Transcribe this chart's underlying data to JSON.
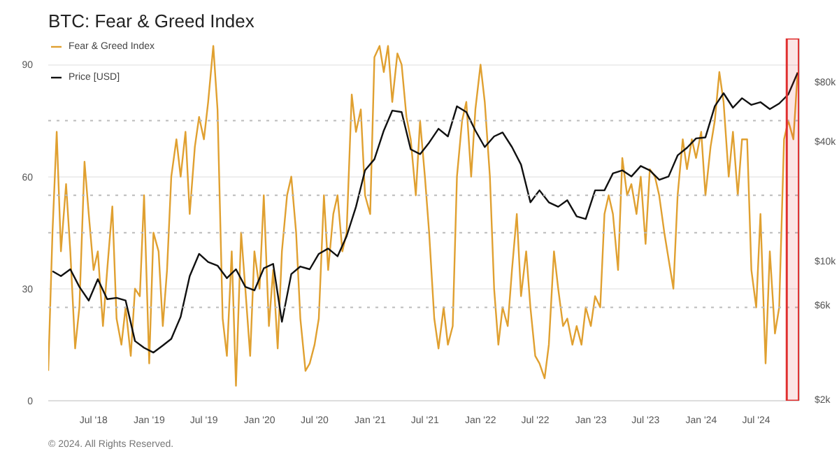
{
  "chart_data": {
    "type": "line",
    "title": "BTC: Fear & Greed Index",
    "legend": "top left",
    "grid": "y",
    "log": "y2",
    "series": [
      {
        "name": "Fear & Greed Index",
        "color": "#e0a030",
        "x": [
          "2018-02-01",
          "2018-02-15",
          "2018-03-01",
          "2018-03-15",
          "2018-04-01",
          "2018-04-15",
          "2018-05-01",
          "2018-05-15",
          "2018-06-01",
          "2018-06-15",
          "2018-07-01",
          "2018-07-15",
          "2018-08-01",
          "2018-08-15",
          "2018-09-01",
          "2018-09-15",
          "2018-10-01",
          "2018-10-15",
          "2018-11-01",
          "2018-11-15",
          "2018-12-01",
          "2018-12-15",
          "2019-01-01",
          "2019-01-15",
          "2019-02-01",
          "2019-02-15",
          "2019-03-01",
          "2019-03-15",
          "2019-04-01",
          "2019-04-15",
          "2019-05-01",
          "2019-05-15",
          "2019-06-01",
          "2019-06-15",
          "2019-07-01",
          "2019-07-15",
          "2019-08-01",
          "2019-08-15",
          "2019-09-01",
          "2019-09-15",
          "2019-10-01",
          "2019-10-15",
          "2019-11-01",
          "2019-11-15",
          "2019-12-01",
          "2019-12-15",
          "2020-01-01",
          "2020-01-15",
          "2020-02-01",
          "2020-02-15",
          "2020-03-01",
          "2020-03-15",
          "2020-04-01",
          "2020-04-15",
          "2020-05-01",
          "2020-05-15",
          "2020-06-01",
          "2020-06-15",
          "2020-07-01",
          "2020-07-15",
          "2020-08-01",
          "2020-08-15",
          "2020-09-01",
          "2020-09-15",
          "2020-10-01",
          "2020-10-15",
          "2020-11-01",
          "2020-11-15",
          "2020-12-01",
          "2020-12-15",
          "2021-01-01",
          "2021-01-15",
          "2021-02-01",
          "2021-02-15",
          "2021-03-01",
          "2021-03-15",
          "2021-04-01",
          "2021-04-15",
          "2021-05-01",
          "2021-05-15",
          "2021-06-01",
          "2021-06-15",
          "2021-07-01",
          "2021-07-15",
          "2021-08-01",
          "2021-08-15",
          "2021-09-01",
          "2021-09-15",
          "2021-10-01",
          "2021-10-15",
          "2021-11-01",
          "2021-11-15",
          "2021-12-01",
          "2021-12-15",
          "2022-01-01",
          "2022-01-15",
          "2022-02-01",
          "2022-02-15",
          "2022-03-01",
          "2022-03-15",
          "2022-04-01",
          "2022-04-15",
          "2022-05-01",
          "2022-05-15",
          "2022-06-01",
          "2022-06-15",
          "2022-07-01",
          "2022-07-15",
          "2022-08-01",
          "2022-08-15",
          "2022-09-01",
          "2022-09-15",
          "2022-10-01",
          "2022-10-15",
          "2022-11-01",
          "2022-11-15",
          "2022-12-01",
          "2022-12-15",
          "2023-01-01",
          "2023-01-15",
          "2023-02-01",
          "2023-02-15",
          "2023-03-01",
          "2023-03-15",
          "2023-04-01",
          "2023-04-15",
          "2023-05-01",
          "2023-05-15",
          "2023-06-01",
          "2023-06-15",
          "2023-07-01",
          "2023-07-15",
          "2023-08-01",
          "2023-08-15",
          "2023-09-01",
          "2023-09-15",
          "2023-10-01",
          "2023-10-15",
          "2023-11-01",
          "2023-11-15",
          "2023-12-01",
          "2023-12-15",
          "2024-01-01",
          "2024-01-15",
          "2024-02-01",
          "2024-02-15",
          "2024-03-01",
          "2024-03-15",
          "2024-04-01",
          "2024-04-15",
          "2024-05-01",
          "2024-05-15",
          "2024-06-01",
          "2024-06-15",
          "2024-07-01",
          "2024-07-15",
          "2024-08-01",
          "2024-08-15",
          "2024-09-01",
          "2024-09-15",
          "2024-10-01",
          "2024-10-15",
          "2024-11-01",
          "2024-11-15"
        ],
        "values": [
          8,
          45,
          72,
          40,
          58,
          40,
          14,
          25,
          64,
          50,
          35,
          40,
          20,
          35,
          52,
          22,
          15,
          25,
          12,
          30,
          28,
          55,
          10,
          45,
          40,
          20,
          35,
          60,
          70,
          60,
          72,
          50,
          68,
          76,
          70,
          80,
          95,
          78,
          22,
          12,
          40,
          4,
          45,
          30,
          12,
          40,
          30,
          55,
          20,
          35,
          14,
          40,
          55,
          60,
          45,
          22,
          8,
          10,
          15,
          22,
          55,
          35,
          50,
          55,
          40,
          45,
          82,
          72,
          78,
          55,
          50,
          92,
          95,
          88,
          95,
          80,
          93,
          90,
          76,
          70,
          55,
          75,
          60,
          45,
          22,
          14,
          25,
          15,
          20,
          60,
          75,
          80,
          60,
          78,
          90,
          80,
          60,
          30,
          15,
          25,
          20,
          35,
          50,
          28,
          40,
          25,
          12,
          10,
          6,
          15,
          40,
          30,
          20,
          22,
          15,
          20,
          15,
          25,
          20,
          28,
          25,
          50,
          55,
          50,
          35,
          65,
          55,
          58,
          50,
          60,
          42,
          62,
          60,
          55,
          45,
          38,
          30,
          55,
          70,
          62,
          70,
          65,
          72,
          55,
          68,
          75,
          88,
          80,
          60,
          72,
          55,
          70,
          70,
          35,
          25,
          50,
          10,
          40,
          18,
          25,
          70,
          75,
          70,
          88
        ]
      },
      {
        "name": "Price [USD]",
        "color": "#111111",
        "axis": "y2",
        "x": [
          "2018-02-15",
          "2018-03-15",
          "2018-04-15",
          "2018-05-15",
          "2018-06-15",
          "2018-07-15",
          "2018-08-15",
          "2018-09-15",
          "2018-10-15",
          "2018-11-15",
          "2018-12-15",
          "2019-01-15",
          "2019-02-15",
          "2019-03-15",
          "2019-04-15",
          "2019-05-15",
          "2019-06-15",
          "2019-07-15",
          "2019-08-15",
          "2019-09-15",
          "2019-10-15",
          "2019-11-15",
          "2019-12-15",
          "2020-01-15",
          "2020-02-15",
          "2020-03-15",
          "2020-04-15",
          "2020-05-15",
          "2020-06-15",
          "2020-07-15",
          "2020-08-15",
          "2020-09-15",
          "2020-10-15",
          "2020-11-15",
          "2020-12-15",
          "2021-01-15",
          "2021-02-15",
          "2021-03-15",
          "2021-04-15",
          "2021-05-15",
          "2021-06-15",
          "2021-07-15",
          "2021-08-15",
          "2021-09-15",
          "2021-10-15",
          "2021-11-15",
          "2021-12-15",
          "2022-01-15",
          "2022-02-15",
          "2022-03-15",
          "2022-04-15",
          "2022-05-15",
          "2022-06-15",
          "2022-07-15",
          "2022-08-15",
          "2022-09-15",
          "2022-10-15",
          "2022-11-15",
          "2022-12-15",
          "2023-01-15",
          "2023-02-15",
          "2023-03-15",
          "2023-04-15",
          "2023-05-15",
          "2023-06-15",
          "2023-07-15",
          "2023-08-15",
          "2023-09-15",
          "2023-10-15",
          "2023-11-15",
          "2023-12-15",
          "2024-01-15",
          "2024-02-15",
          "2024-03-15",
          "2024-04-15",
          "2024-05-15",
          "2024-06-15",
          "2024-07-15",
          "2024-08-15",
          "2024-09-15",
          "2024-10-15",
          "2024-11-15"
        ],
        "values": [
          9000,
          8500,
          9200,
          7500,
          6400,
          8200,
          6500,
          6600,
          6400,
          4000,
          3700,
          3500,
          3800,
          4100,
          5300,
          8500,
          11000,
          10000,
          9600,
          8300,
          9200,
          7500,
          7200,
          9300,
          9800,
          5000,
          8700,
          9500,
          9200,
          11000,
          11700,
          10700,
          13500,
          19000,
          29000,
          33000,
          46000,
          58000,
          57000,
          37000,
          35000,
          40000,
          47000,
          43000,
          61000,
          57000,
          46000,
          38000,
          43000,
          45000,
          38000,
          31000,
          20000,
          23000,
          20000,
          19000,
          20500,
          17000,
          16500,
          23000,
          23000,
          28000,
          29000,
          27000,
          30500,
          29000,
          26000,
          27000,
          34500,
          37700,
          42000,
          42500,
          61000,
          71000,
          60000,
          67000,
          62000,
          64000,
          59000,
          63000,
          70000,
          90000
        ]
      }
    ],
    "ylim": [
      0,
      97
    ],
    "yticks": [
      0,
      30,
      60,
      90
    ],
    "y2lim": [
      2000,
      134000
    ],
    "y2ticks": [
      {
        "value": 2000,
        "label": "$2k"
      },
      {
        "value": 6000,
        "label": "$6k"
      },
      {
        "value": 10000,
        "label": "$10k"
      },
      {
        "value": 40000,
        "label": "$40k"
      },
      {
        "value": 80000,
        "label": "$80k"
      }
    ],
    "xlim": [
      "2018-02-01",
      "2024-11-20"
    ],
    "xticks": [
      {
        "value": "2018-07-01",
        "label": "Jul '18"
      },
      {
        "value": "2019-01-01",
        "label": "Jan '19"
      },
      {
        "value": "2019-07-01",
        "label": "Jul '19"
      },
      {
        "value": "2020-01-01",
        "label": "Jan '20"
      },
      {
        "value": "2020-07-01",
        "label": "Jul '20"
      },
      {
        "value": "2021-01-01",
        "label": "Jan '21"
      },
      {
        "value": "2021-07-01",
        "label": "Jul '21"
      },
      {
        "value": "2022-01-01",
        "label": "Jan '22"
      },
      {
        "value": "2022-07-01",
        "label": "Jul '22"
      },
      {
        "value": "2023-01-01",
        "label": "Jan '23"
      },
      {
        "value": "2023-07-01",
        "label": "Jul '23"
      },
      {
        "value": "2024-01-01",
        "label": "Jan '24"
      },
      {
        "value": "2024-07-01",
        "label": "Jul '24"
      }
    ],
    "ref_lines": [
      {
        "axis": "y",
        "value": 75,
        "color": "#bbbbbb",
        "line_style": "dotted"
      },
      {
        "axis": "y",
        "value": 55,
        "color": "#bbbbbb",
        "line_style": "dotted"
      },
      {
        "axis": "y",
        "value": 45,
        "color": "#bbbbbb",
        "line_style": "dotted"
      },
      {
        "axis": "y",
        "value": 25,
        "color": "#bbbbbb",
        "line_style": "dotted"
      }
    ],
    "bands": [
      {
        "axis": "x",
        "from": "2024-10-10",
        "to": "2024-11-19",
        "color": "#e03030"
      }
    ],
    "annotations": [
      "© 2024. All Rights Reserved."
    ]
  }
}
